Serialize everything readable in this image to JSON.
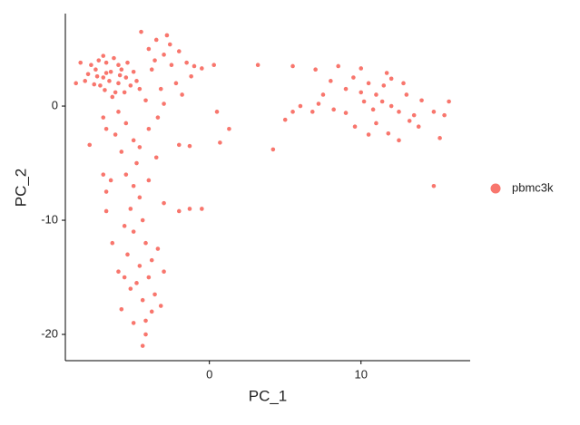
{
  "chart_data": {
    "type": "scatter",
    "x_label": "PC_1",
    "y_label": "PC_2",
    "xlim": [
      -9.5,
      17.2
    ],
    "ylim": [
      -22.3,
      8.1
    ],
    "xticks": [
      0,
      10
    ],
    "yticks": [
      -20,
      -10,
      0
    ],
    "x": [
      -7,
      -6.5,
      -7.5,
      -6,
      -7.2,
      -6.8,
      -5.8,
      -8,
      -6.2,
      -5.5,
      -7.8,
      -6.6,
      -7.4,
      -5.2,
      -6.9,
      -8.5,
      -6.3,
      -5,
      -7.6,
      -4.8,
      -6,
      -7,
      -5.6,
      -6.4,
      -8.2,
      -4.6,
      -5.4,
      -6.8,
      -7.3,
      -5.9,
      -4,
      -3.5,
      -2.8,
      -3,
      -2.5,
      -4.5,
      -2,
      -1.5,
      -1,
      -0.5,
      -3.8,
      -2.2,
      -3.2,
      -4.2,
      -1.8,
      -3,
      -2.6,
      -3.6,
      -1.2,
      0.3,
      -6,
      -5.5,
      -6.2,
      -5,
      -5.8,
      -4.8,
      -5.5,
      -5,
      -4.6,
      -5.2,
      -4.4,
      -5,
      -4.2,
      -5.4,
      -4.6,
      -4,
      -5.2,
      -4.4,
      -3.8,
      -5,
      -4.2,
      -4.4,
      -3.6,
      -6,
      -3.4,
      -6.4,
      -5.8,
      -3.2,
      -6.8,
      -7.9,
      -3,
      -3.5,
      -6.5,
      -4,
      -5.6,
      -3.8,
      -4.8,
      -5.6,
      -4.2,
      -3,
      -7,
      -6.8,
      -4,
      -3.4,
      -2,
      -1.3,
      -2,
      -7,
      -6.8,
      -4.6,
      11,
      10.5,
      12,
      11.5,
      10,
      12.5,
      11,
      13,
      9.5,
      12,
      10.8,
      11.8,
      13.5,
      14,
      9,
      8,
      7,
      7.5,
      8.5,
      10,
      12.8,
      13.8,
      14.8,
      15.5,
      15.8,
      15.2,
      12.5,
      10.5,
      9.6,
      11.4,
      6,
      5.5,
      6.8,
      7.2,
      5.5,
      8.2,
      9,
      13.2,
      10.2,
      11.7,
      3.2,
      0.5,
      0.7,
      1.3,
      4.2,
      14.8,
      -1.3,
      -0.5,
      5,
      -8.8
    ],
    "series": [
      {
        "name": "pbmc3k",
        "color": "#f8766d",
        "values": [
          2.5,
          3,
          3.2,
          2,
          1.8,
          3.8,
          3.2,
          2.8,
          1.2,
          2.5,
          3.6,
          2.2,
          2.6,
          1.8,
          1.4,
          3.8,
          4.2,
          3,
          1.9,
          2.2,
          3.6,
          4.4,
          1.2,
          0.8,
          2.2,
          1.5,
          3.8,
          2.9,
          4,
          2.7,
          5,
          5.8,
          6.2,
          4.5,
          3.6,
          6.5,
          4.8,
          3.8,
          3.5,
          3.3,
          3.2,
          2,
          1.5,
          0.5,
          1,
          0.2,
          5.4,
          4,
          2.6,
          3.6,
          -0.5,
          -1.5,
          -2.5,
          -3,
          -4,
          -5,
          -6,
          -7,
          -8,
          -9,
          -10,
          -11,
          -12,
          -13,
          -14,
          -15,
          -16,
          -17,
          -18,
          -19,
          -20,
          -21,
          -16.5,
          -14.5,
          -12.5,
          -12,
          -17.8,
          -17.5,
          -9.2,
          -3.4,
          -8.5,
          -4.5,
          -6.5,
          -6.5,
          -10.5,
          -13.5,
          -15.5,
          -15,
          -18.8,
          -14.5,
          -1,
          -2,
          -2,
          -1,
          -3.4,
          -9,
          -9.2,
          -6,
          -7.5,
          -3.6,
          1,
          2,
          0,
          1.8,
          1.2,
          -0.5,
          -1.5,
          1,
          2.5,
          2.4,
          -0.3,
          -2.4,
          -0.8,
          0.5,
          1.5,
          2.2,
          3.2,
          1,
          3.5,
          3.3,
          2,
          -1.8,
          -0.5,
          -0.8,
          0.4,
          -2.8,
          -3,
          -2.5,
          -1.8,
          0.4,
          0,
          -0.5,
          -0.5,
          0.2,
          3.5,
          -0.3,
          -0.6,
          -1.3,
          0.4,
          2.9,
          3.6,
          -0.5,
          -3.2,
          -2,
          -3.8,
          -7,
          -3.5,
          -9,
          -1.2,
          2
        ]
      }
    ]
  }
}
